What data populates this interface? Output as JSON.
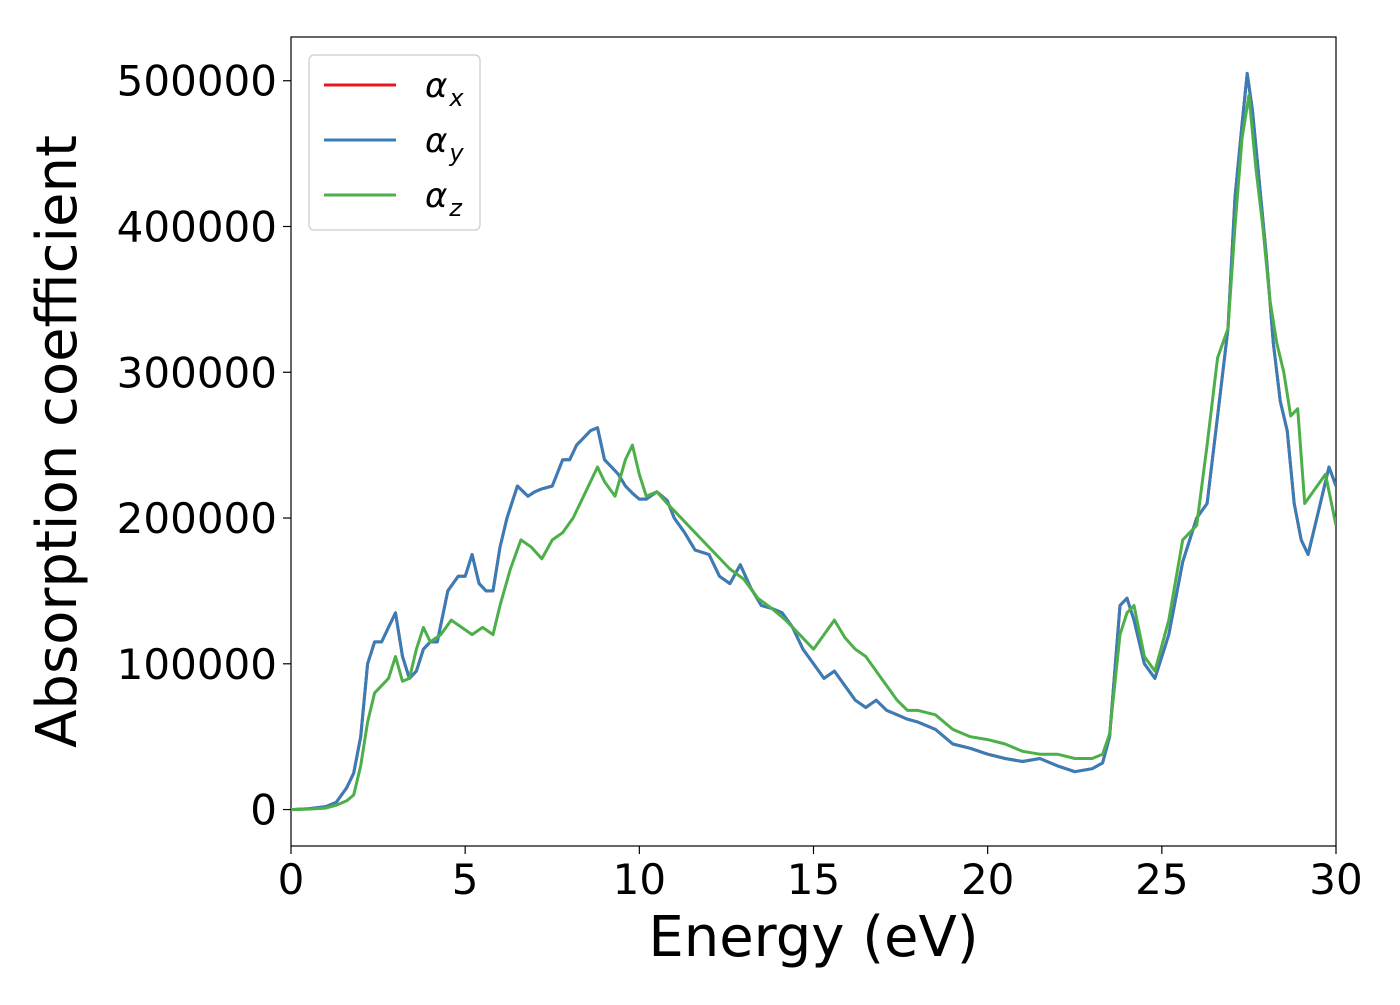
{
  "chart_data": {
    "type": "line",
    "title": "",
    "xlabel": "Energy (eV)",
    "ylabel": "Absorption coefficient",
    "xlim": [
      0,
      30
    ],
    "ylim": [
      -25000,
      530000
    ],
    "xticks": [
      0,
      5,
      10,
      15,
      20,
      25,
      30
    ],
    "xtick_labels": [
      "0",
      "5",
      "10",
      "15",
      "20",
      "25",
      "30"
    ],
    "yticks": [
      0,
      100000,
      200000,
      300000,
      400000,
      500000
    ],
    "ytick_labels": [
      "0",
      "100000",
      "200000",
      "300000",
      "400000",
      "500000"
    ],
    "grid": false,
    "legend_position": "upper-left",
    "series": [
      {
        "name": "α_x",
        "label_main": "α",
        "label_sub": "x",
        "color": "#e41a1c",
        "x": [
          0,
          0.5,
          1,
          1.3,
          1.6,
          1.8,
          2,
          2.2,
          2.4,
          2.6,
          2.8,
          3.0,
          3.2,
          3.4,
          3.6,
          3.8,
          4.0,
          4.2,
          4.5,
          4.8,
          5.0,
          5.2,
          5.4,
          5.6,
          5.8,
          6.0,
          6.2,
          6.5,
          6.8,
          7.0,
          7.2,
          7.5,
          7.8,
          8.0,
          8.2,
          8.4,
          8.6,
          8.8,
          9.0,
          9.2,
          9.4,
          9.6,
          9.8,
          10.0,
          10.2,
          10.5,
          10.8,
          11.0,
          11.3,
          11.6,
          12.0,
          12.3,
          12.6,
          12.9,
          13.2,
          13.5,
          13.8,
          14.1,
          14.4,
          14.7,
          15.0,
          15.3,
          15.6,
          15.9,
          16.2,
          16.5,
          16.8,
          17.1,
          17.4,
          17.7,
          18.0,
          18.5,
          19.0,
          19.5,
          20.0,
          20.5,
          21.0,
          21.5,
          22.0,
          22.5,
          23.0,
          23.3,
          23.5,
          23.8,
          24.0,
          24.2,
          24.5,
          24.8,
          25.2,
          25.6,
          26.0,
          26.3,
          26.6,
          26.9,
          27.1,
          27.3,
          27.45,
          27.6,
          27.8,
          28.0,
          28.2,
          28.4,
          28.6,
          28.8,
          29.0,
          29.2,
          29.5,
          29.8,
          30.0
        ],
        "y": [
          0,
          500,
          2000,
          5000,
          15000,
          25000,
          50000,
          100000,
          115000,
          115000,
          125000,
          135000,
          105000,
          90000,
          95000,
          110000,
          115000,
          115000,
          150000,
          160000,
          160000,
          175000,
          155000,
          150000,
          150000,
          180000,
          200000,
          222000,
          215000,
          218000,
          220000,
          222000,
          240000,
          240000,
          250000,
          255000,
          260000,
          262000,
          240000,
          235000,
          230000,
          222000,
          217000,
          213000,
          213000,
          218000,
          212000,
          200000,
          190000,
          178000,
          175000,
          160000,
          155000,
          168000,
          152000,
          140000,
          138000,
          135000,
          125000,
          110000,
          100000,
          90000,
          95000,
          85000,
          75000,
          70000,
          75000,
          68000,
          65000,
          62000,
          60000,
          55000,
          45000,
          42000,
          38000,
          35000,
          33000,
          35000,
          30000,
          26000,
          28000,
          32000,
          50000,
          140000,
          145000,
          130000,
          100000,
          90000,
          120000,
          170000,
          200000,
          210000,
          270000,
          330000,
          420000,
          470000,
          505000,
          480000,
          430000,
          380000,
          320000,
          280000,
          260000,
          210000,
          185000,
          175000,
          205000,
          235000,
          222000
        ]
      },
      {
        "name": "α_y",
        "label_main": "α",
        "label_sub": "y",
        "color": "#377eb8",
        "x": [
          0,
          0.5,
          1,
          1.3,
          1.6,
          1.8,
          2,
          2.2,
          2.4,
          2.6,
          2.8,
          3.0,
          3.2,
          3.4,
          3.6,
          3.8,
          4.0,
          4.2,
          4.5,
          4.8,
          5.0,
          5.2,
          5.4,
          5.6,
          5.8,
          6.0,
          6.2,
          6.5,
          6.8,
          7.0,
          7.2,
          7.5,
          7.8,
          8.0,
          8.2,
          8.4,
          8.6,
          8.8,
          9.0,
          9.2,
          9.4,
          9.6,
          9.8,
          10.0,
          10.2,
          10.5,
          10.8,
          11.0,
          11.3,
          11.6,
          12.0,
          12.3,
          12.6,
          12.9,
          13.2,
          13.5,
          13.8,
          14.1,
          14.4,
          14.7,
          15.0,
          15.3,
          15.6,
          15.9,
          16.2,
          16.5,
          16.8,
          17.1,
          17.4,
          17.7,
          18.0,
          18.5,
          19.0,
          19.5,
          20.0,
          20.5,
          21.0,
          21.5,
          22.0,
          22.5,
          23.0,
          23.3,
          23.5,
          23.8,
          24.0,
          24.2,
          24.5,
          24.8,
          25.2,
          25.6,
          26.0,
          26.3,
          26.6,
          26.9,
          27.1,
          27.3,
          27.45,
          27.6,
          27.8,
          28.0,
          28.2,
          28.4,
          28.6,
          28.8,
          29.0,
          29.2,
          29.5,
          29.8,
          30.0
        ],
        "y": [
          0,
          500,
          2000,
          5000,
          15000,
          25000,
          50000,
          100000,
          115000,
          115000,
          125000,
          135000,
          105000,
          90000,
          95000,
          110000,
          115000,
          115000,
          150000,
          160000,
          160000,
          175000,
          155000,
          150000,
          150000,
          180000,
          200000,
          222000,
          215000,
          218000,
          220000,
          222000,
          240000,
          240000,
          250000,
          255000,
          260000,
          262000,
          240000,
          235000,
          230000,
          222000,
          217000,
          213000,
          213000,
          218000,
          212000,
          200000,
          190000,
          178000,
          175000,
          160000,
          155000,
          168000,
          152000,
          140000,
          138000,
          135000,
          125000,
          110000,
          100000,
          90000,
          95000,
          85000,
          75000,
          70000,
          75000,
          68000,
          65000,
          62000,
          60000,
          55000,
          45000,
          42000,
          38000,
          35000,
          33000,
          35000,
          30000,
          26000,
          28000,
          32000,
          50000,
          140000,
          145000,
          130000,
          100000,
          90000,
          120000,
          170000,
          200000,
          210000,
          270000,
          330000,
          420000,
          470000,
          505000,
          480000,
          430000,
          380000,
          320000,
          280000,
          260000,
          210000,
          185000,
          175000,
          205000,
          235000,
          222000
        ]
      },
      {
        "name": "α_z",
        "label_main": "α",
        "label_sub": "z",
        "color": "#4daf4a",
        "x": [
          0,
          0.5,
          1,
          1.3,
          1.6,
          1.8,
          2.0,
          2.2,
          2.4,
          2.6,
          2.8,
          3.0,
          3.2,
          3.4,
          3.6,
          3.8,
          4.0,
          4.3,
          4.6,
          4.9,
          5.2,
          5.5,
          5.8,
          6.0,
          6.3,
          6.6,
          6.9,
          7.2,
          7.5,
          7.8,
          8.1,
          8.4,
          8.8,
          9.0,
          9.3,
          9.6,
          9.8,
          10.0,
          10.2,
          10.5,
          10.8,
          11.0,
          11.4,
          11.8,
          12.2,
          12.6,
          13.0,
          13.4,
          13.8,
          14.2,
          14.6,
          15.0,
          15.3,
          15.6,
          15.9,
          16.2,
          16.5,
          16.8,
          17.1,
          17.4,
          17.7,
          18.0,
          18.5,
          19.0,
          19.5,
          20.0,
          20.5,
          21.0,
          21.5,
          22.0,
          22.5,
          23.0,
          23.3,
          23.5,
          23.8,
          24.0,
          24.2,
          24.5,
          24.8,
          25.2,
          25.6,
          26.0,
          26.3,
          26.6,
          26.9,
          27.1,
          27.3,
          27.5,
          27.7,
          27.9,
          28.1,
          28.3,
          28.5,
          28.7,
          28.9,
          29.1,
          29.4,
          29.7,
          30.0
        ],
        "y": [
          0,
          300,
          1000,
          3000,
          6000,
          10000,
          30000,
          60000,
          80000,
          85000,
          90000,
          105000,
          88000,
          90000,
          110000,
          125000,
          115000,
          120000,
          130000,
          125000,
          120000,
          125000,
          120000,
          140000,
          165000,
          185000,
          180000,
          172000,
          185000,
          190000,
          200000,
          215000,
          235000,
          225000,
          215000,
          240000,
          250000,
          230000,
          215000,
          218000,
          210000,
          205000,
          195000,
          185000,
          175000,
          165000,
          158000,
          145000,
          138000,
          130000,
          120000,
          110000,
          120000,
          130000,
          118000,
          110000,
          105000,
          95000,
          85000,
          75000,
          68000,
          68000,
          65000,
          55000,
          50000,
          48000,
          45000,
          40000,
          38000,
          38000,
          35000,
          35000,
          38000,
          52000,
          120000,
          135000,
          140000,
          105000,
          95000,
          130000,
          185000,
          195000,
          250000,
          310000,
          330000,
          400000,
          460000,
          490000,
          440000,
          400000,
          350000,
          320000,
          300000,
          270000,
          275000,
          210000,
          220000,
          230000,
          195000
        ]
      }
    ]
  }
}
